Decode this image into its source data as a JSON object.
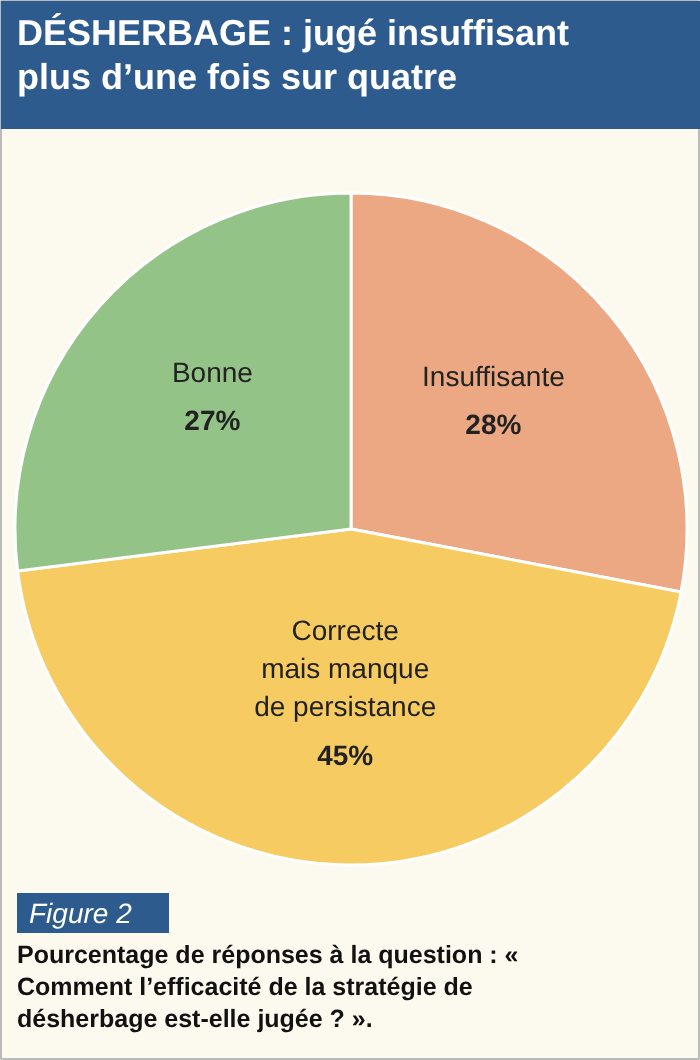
{
  "chart_data": {
    "type": "pie",
    "title": "DÉSHERBAGE : jugé insuffisant plus d’une fois sur quatre",
    "categories": [
      "Insuffisante",
      "Correcte\nmais manque\nde persistance",
      "Bonne"
    ],
    "values": [
      28,
      45,
      27
    ],
    "colors": [
      "#eba883",
      "#f6cb62",
      "#93c387"
    ],
    "value_labels": [
      "28%",
      "45%",
      "27%"
    ],
    "annotations": [
      "Figure 2",
      "Pourcentage de réponses à la question : « Comment l’efficacité de la stratégie de désherbage est-elle jugée ? »."
    ]
  }
}
